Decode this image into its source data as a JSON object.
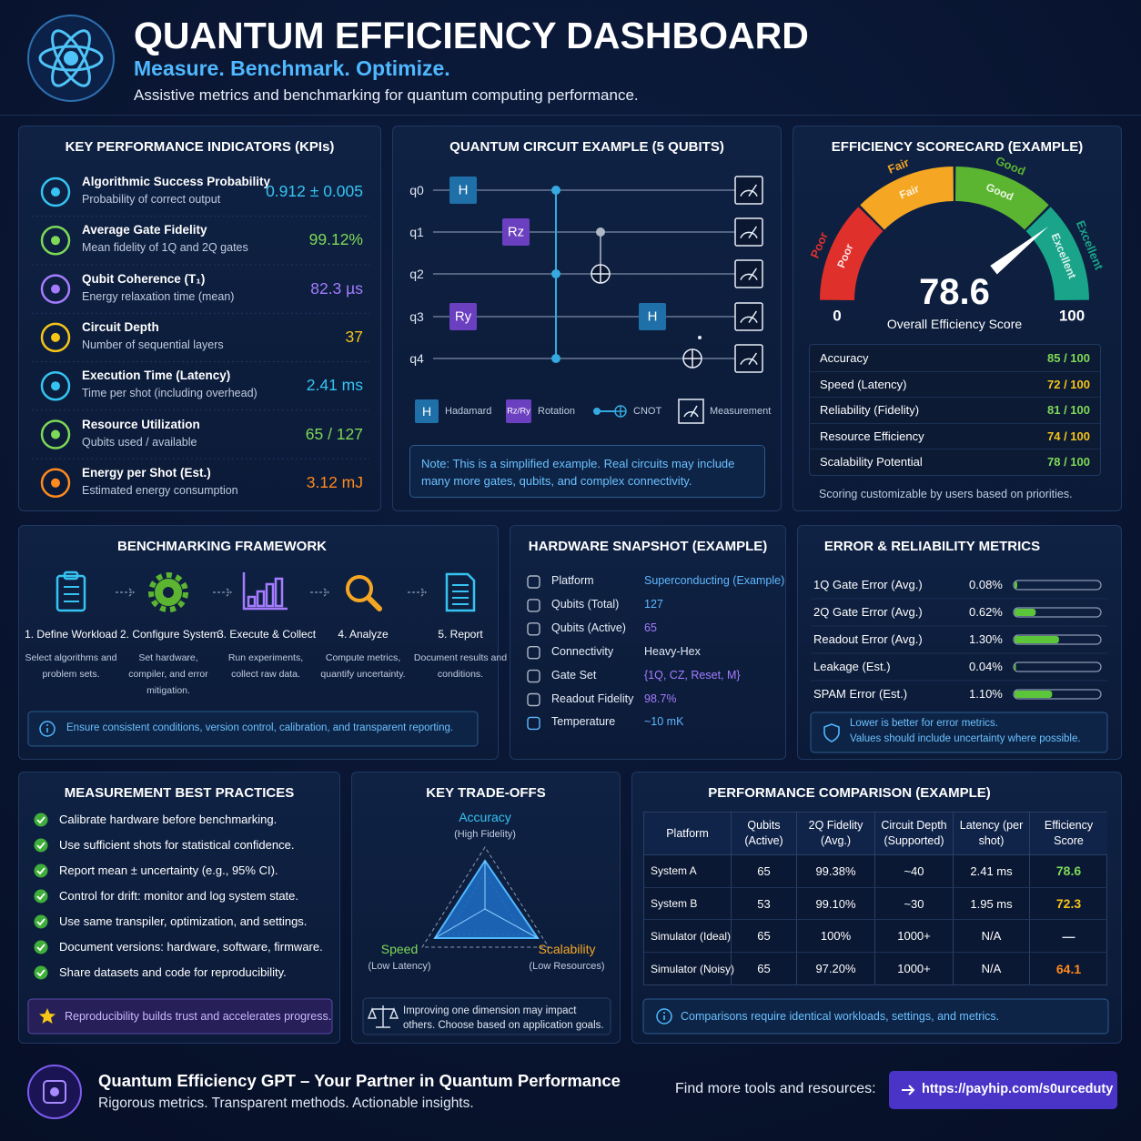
{
  "header": {
    "title": "QUANTUM EFFICIENCY DASHBOARD",
    "tagline": "Measure. Benchmark. Optimize.",
    "subtitle": "Assistive metrics and benchmarking for quantum computing performance."
  },
  "kpis": {
    "title": "KEY PERFORMANCE INDICATORS (KPIs)",
    "items": [
      {
        "label": "Algorithmic Success Probability",
        "desc": "Probability of correct output",
        "value": "0.912 ± 0.005",
        "color": "#35c4f2"
      },
      {
        "label": "Average Gate Fidelity",
        "desc": "Mean fidelity of 1Q and 2Q gates",
        "value": "99.12%",
        "color": "#7ed957"
      },
      {
        "label": "Qubit Coherence (T₁)",
        "desc": "Energy relaxation time (mean)",
        "value": "82.3 µs",
        "color": "#a57cff"
      },
      {
        "label": "Circuit Depth",
        "desc": "Number of sequential layers",
        "value": "37",
        "color": "#f5c518"
      },
      {
        "label": "Execution Time (Latency)",
        "desc": "Time per shot (including overhead)",
        "value": "2.41 ms",
        "color": "#35c4f2"
      },
      {
        "label": "Resource Utilization",
        "desc": "Qubits used / available",
        "value": "65 / 127",
        "color": "#7ed957"
      },
      {
        "label": "Energy per Shot (Est.)",
        "desc": "Estimated energy consumption",
        "value": "3.12 mJ",
        "color": "#ff8a1f"
      }
    ]
  },
  "circuit": {
    "title": "QUANTUM CIRCUIT EXAMPLE (5 QUBITS)",
    "qubits": [
      "q0",
      "q1",
      "q2",
      "q3",
      "q4"
    ],
    "gates": [
      "H",
      "Rz",
      "Ry",
      "H"
    ],
    "legend": [
      {
        "symbol": "H",
        "label": "Hadamard"
      },
      {
        "symbol": "Rz/Ry",
        "label": "Rotation"
      },
      {
        "label": "CNOT"
      },
      {
        "label": "Measurement"
      }
    ],
    "note": "Note: This is a simplified example. Real circuits may include many more gates, qubits, and complex connectivity."
  },
  "scorecard": {
    "title": "EFFICIENCY SCORECARD (EXAMPLE)",
    "bands": [
      {
        "label": "Poor",
        "color": "#e0302c"
      },
      {
        "label": "Fair",
        "color": "#f5a623"
      },
      {
        "label": "Good",
        "color": "#5cb531"
      },
      {
        "label": "Excellent",
        "color": "#1aa58a"
      }
    ],
    "range": [
      0,
      100
    ],
    "score": 78.6,
    "score_label": "Overall Efficiency Score",
    "rows": [
      {
        "label": "Accuracy",
        "value": "85 / 100",
        "color": "#7ed957"
      },
      {
        "label": "Speed (Latency)",
        "value": "72 / 100",
        "color": "#f5c518"
      },
      {
        "label": "Reliability (Fidelity)",
        "value": "81 / 100",
        "color": "#7ed957"
      },
      {
        "label": "Resource Efficiency",
        "value": "74 / 100",
        "color": "#f5c518"
      },
      {
        "label": "Scalability Potential",
        "value": "78 / 100",
        "color": "#7ed957"
      }
    ],
    "footnote": "Scoring customizable by users based on priorities."
  },
  "benchmark": {
    "title": "BENCHMARKING FRAMEWORK",
    "steps": [
      {
        "title": "1. Define Workload",
        "desc": "Select algorithms and problem sets.",
        "color": "#35c4f2"
      },
      {
        "title": "2. Configure System",
        "desc": "Set hardware, compiler, and error mitigation.",
        "color": "#5cb531"
      },
      {
        "title": "3. Execute & Collect",
        "desc": "Run experiments, collect raw data.",
        "color": "#a57cff"
      },
      {
        "title": "4. Analyze",
        "desc": "Compute metrics, quantify uncertainty.",
        "color": "#f5a623"
      },
      {
        "title": "5. Report",
        "desc": "Document results and conditions.",
        "color": "#35c4f2"
      }
    ],
    "note": "Ensure consistent conditions, version control, calibration, and transparent reporting."
  },
  "hardware": {
    "title": "HARDWARE SNAPSHOT (EXAMPLE)",
    "rows": [
      {
        "label": "Platform",
        "value": "Superconducting (Example)",
        "color": "#5fb8ff"
      },
      {
        "label": "Qubits (Total)",
        "value": "127",
        "color": "#5fb8ff"
      },
      {
        "label": "Qubits (Active)",
        "value": "65",
        "color": "#a57cff"
      },
      {
        "label": "Connectivity",
        "value": "Heavy-Hex",
        "color": "#dfe6f3"
      },
      {
        "label": "Gate Set",
        "value": "{1Q, CZ, Reset, M}",
        "color": "#a57cff"
      },
      {
        "label": "Readout Fidelity",
        "value": "98.7%",
        "color": "#a57cff"
      },
      {
        "label": "Temperature",
        "value": "~10 mK",
        "color": "#5fb8ff"
      }
    ]
  },
  "errors": {
    "title": "ERROR & RELIABILITY METRICS",
    "categories": [
      "1Q Gate Error (Avg.)",
      "2Q Gate Error (Avg.)",
      "Readout Error (Avg.)",
      "Leakage (Est.)",
      "SPAM Error (Est.)"
    ],
    "values": [
      0.08,
      0.62,
      1.3,
      0.04,
      1.1
    ],
    "value_labels": [
      "0.08%",
      "0.62%",
      "1.30%",
      "0.04%",
      "1.10%"
    ],
    "xlim": [
      0,
      2.5
    ],
    "color": "#5cc63a",
    "note": [
      "Lower is better for error metrics.",
      "Values should include uncertainty where possible."
    ]
  },
  "practices": {
    "title": "MEASUREMENT BEST PRACTICES",
    "items": [
      "Calibrate hardware before benchmarking.",
      "Use sufficient shots for statistical confidence.",
      "Report mean ± uncertainty (e.g., 95% CI).",
      "Control for drift: monitor and log system state.",
      "Use same transpiler, optimization, and settings.",
      "Document versions: hardware, software, firmware.",
      "Share datasets and code for reproducibility."
    ],
    "highlight": "Reproducibility builds trust and accelerates progress."
  },
  "tradeoffs": {
    "title": "KEY TRADE-OFFS",
    "axes": [
      {
        "label": "Accuracy",
        "sub": "(High Fidelity)",
        "color": "#35c4f2"
      },
      {
        "label": "Speed",
        "sub": "(Low Latency)",
        "color": "#7ed957"
      },
      {
        "label": "Scalability",
        "sub": "(Low Resources)",
        "color": "#f5a623"
      }
    ],
    "note": "Improving one dimension may impact others. Choose based on application goals."
  },
  "comparison": {
    "title": "PERFORMANCE COMPARISON (EXAMPLE)",
    "columns": [
      "Platform",
      "Qubits (Active)",
      "2Q Fidelity (Avg.)",
      "Circuit Depth (Supported)",
      "Latency (per shot)",
      "Efficiency Score"
    ],
    "rows": [
      [
        "System A",
        "65",
        "99.38%",
        "~40",
        "2.41 ms",
        "78.6"
      ],
      [
        "System B",
        "53",
        "99.10%",
        "~30",
        "1.95 ms",
        "72.3"
      ],
      [
        "Simulator (Ideal)",
        "65",
        "100%",
        "1000+",
        "N/A",
        "—"
      ],
      [
        "Simulator (Noisy)",
        "65",
        "97.20%",
        "1000+",
        "N/A",
        "64.1"
      ]
    ],
    "score_colors": [
      "#7ed957",
      "#f5c518",
      "#dfe6f3",
      "#ff8a1f"
    ],
    "note": "Comparisons require identical workloads, settings, and metrics."
  },
  "footer": {
    "title": "Quantum Efficiency GPT – Your Partner in Quantum Performance",
    "subtitle": "Rigorous metrics. Transparent methods. Actionable insights.",
    "cta": "Find more tools and resources:",
    "link": "https://payhip.com/s0urceduty"
  }
}
